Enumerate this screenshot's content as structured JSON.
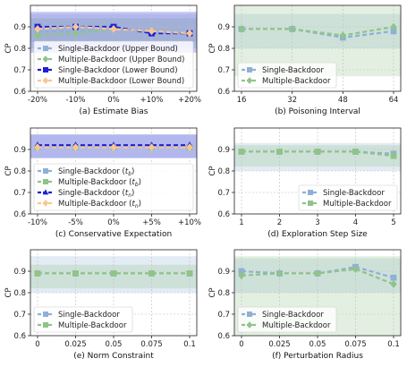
{
  "colors": {
    "single_blue": "#8fb0d6",
    "multiple_green": "#8fc489",
    "lower_blue": "#1f1fd6",
    "lower_orange": "#f6c793",
    "grid": "#bdbdbd"
  },
  "chart_data": [
    {
      "id": "a",
      "type": "line",
      "caption": "(a) Estimate Bias",
      "ylabel": "CP",
      "xlabel": "",
      "categories": [
        "-20%",
        "-10%",
        "0%",
        "+10%",
        "+20%"
      ],
      "ylim": [
        0.6,
        1.0
      ],
      "yticks": [
        "0.6",
        "0.7",
        "0.8",
        "0.9"
      ],
      "grid": true,
      "legend_position": "lower-left",
      "series": [
        {
          "name": "Single-Backdoor (Upper Bound)",
          "values": [
            0.88,
            0.88,
            0.9,
            0.87,
            0.87
          ],
          "color": "#8fb0d6",
          "marker": "square",
          "band": [
            0.8,
            0.96
          ]
        },
        {
          "name": "Multiple-Backdoor (Upper Bound)",
          "values": [
            0.86,
            0.87,
            0.89,
            0.88,
            0.87
          ],
          "color": "#8fc489",
          "marker": "diamond",
          "band": [
            0.83,
            0.94
          ]
        },
        {
          "name": "Single-Backdoor (Lower Bound)",
          "values": [
            0.9,
            0.9,
            0.9,
            0.87,
            0.87
          ],
          "color": "#1f1fd6",
          "marker": "square",
          "band": [
            0.78,
            0.97
          ]
        },
        {
          "name": "Multiple-Backdoor (Lower Bound)",
          "values": [
            0.89,
            0.9,
            0.89,
            0.88,
            0.87
          ],
          "color": "#f6c793",
          "marker": "diamond",
          "band": null
        }
      ]
    },
    {
      "id": "b",
      "type": "line",
      "caption": "(b) Poisoning Interval",
      "ylabel": "CP",
      "xlabel": "",
      "categories": [
        "16",
        "32",
        "48",
        "64"
      ],
      "ylim": [
        0.6,
        1.0
      ],
      "yticks": [
        "0.6",
        "0.7",
        "0.8",
        "0.9"
      ],
      "grid": true,
      "legend_position": "lower-left",
      "series": [
        {
          "name": "Single-Backdoor",
          "values": [
            0.89,
            0.89,
            0.85,
            0.88
          ],
          "color": "#8fb0d6",
          "marker": "square",
          "band": [
            0.8,
            0.96
          ]
        },
        {
          "name": "Multiple-Backdoor",
          "values": [
            0.89,
            0.89,
            0.86,
            0.9
          ],
          "color": "#8fc489",
          "marker": "diamond",
          "band": [
            0.67,
            1.0
          ]
        }
      ]
    },
    {
      "id": "c",
      "type": "line",
      "caption": "(c) Conservative Expectation",
      "ylabel": "CP",
      "xlabel": "",
      "categories": [
        "-10%",
        "-5%",
        "0%",
        "+5%",
        "+10%"
      ],
      "ylim": [
        0.6,
        1.0
      ],
      "yticks": [
        "0.6",
        "0.7",
        "0.8",
        "0.9"
      ],
      "grid": true,
      "legend_position": "lower-left",
      "series": [
        {
          "name": "Single-Backdoor (t_b)",
          "label_main": "Single-Backdoor (",
          "label_sub": "t",
          "label_subscript": "b",
          "values": [
            0.91,
            0.91,
            0.91,
            0.91,
            0.91
          ],
          "color": "#8fb0d6",
          "marker": "square",
          "band": [
            0.86,
            0.97
          ]
        },
        {
          "name": "Multiple-Backdoor (t_b)",
          "label_main": "Multiple-Backdoor (",
          "label_sub": "t",
          "label_subscript": "b",
          "values": [
            0.91,
            0.91,
            0.91,
            0.91,
            0.91
          ],
          "color": "#8fc489",
          "marker": "square",
          "band": null
        },
        {
          "name": "Single-Backdoor (t_n)",
          "label_main": "Single-Backdoor (",
          "label_sub": "t",
          "label_subscript": "n",
          "values": [
            0.92,
            0.92,
            0.92,
            0.92,
            0.92
          ],
          "color": "#1f1fd6",
          "marker": "triangle",
          "band": [
            0.86,
            0.97
          ]
        },
        {
          "name": "Multiple-Backdoor (t_n)",
          "label_main": "Multiple-Backdoor (",
          "label_sub": "t",
          "label_subscript": "n",
          "values": [
            0.91,
            0.91,
            0.91,
            0.91,
            0.91
          ],
          "color": "#f6c793",
          "marker": "diamond",
          "band": null
        }
      ]
    },
    {
      "id": "d",
      "type": "line",
      "caption": "(d) Exploration Step Size",
      "ylabel": "CP",
      "xlabel": "",
      "categories": [
        "1",
        "2",
        "3",
        "4",
        "5"
      ],
      "ylim": [
        0.6,
        1.0
      ],
      "yticks": [
        "0.6",
        "0.7",
        "0.8",
        "0.9"
      ],
      "grid": true,
      "legend_position": "lower-right",
      "series": [
        {
          "name": "Single-Backdoor",
          "values": [
            0.89,
            0.89,
            0.89,
            0.89,
            0.88
          ],
          "color": "#8fb0d6",
          "marker": "square",
          "band": [
            0.8,
            0.93
          ]
        },
        {
          "name": "Multiple-Backdoor",
          "values": [
            0.89,
            0.89,
            0.89,
            0.89,
            0.87
          ],
          "color": "#8fc489",
          "marker": "square",
          "band": [
            0.82,
            0.92
          ]
        }
      ]
    },
    {
      "id": "e",
      "type": "line",
      "caption": "(e) Norm Constraint",
      "ylabel": "CP",
      "xlabel": "",
      "categories": [
        "0",
        "0.025",
        "0.05",
        "0.075",
        "0.1"
      ],
      "ylim": [
        0.6,
        1.0
      ],
      "yticks": [
        "0.6",
        "0.7",
        "0.8",
        "0.9"
      ],
      "grid": true,
      "legend_position": "lower-left",
      "series": [
        {
          "name": "Single-Backdoor",
          "values": [
            0.89,
            0.89,
            0.89,
            0.89,
            0.89
          ],
          "color": "#8fb0d6",
          "marker": "square",
          "band": [
            0.8,
            0.97
          ]
        },
        {
          "name": "Multiple-Backdoor",
          "values": [
            0.89,
            0.89,
            0.89,
            0.89,
            0.89
          ],
          "color": "#8fc489",
          "marker": "square",
          "band": [
            0.82,
            0.93
          ]
        }
      ]
    },
    {
      "id": "f",
      "type": "line",
      "caption": "(f) Perturbation Radius",
      "ylabel": "CP",
      "xlabel": "",
      "categories": [
        "0",
        "0.025",
        "0.05",
        "0.075",
        "0.1"
      ],
      "ylim": [
        0.6,
        1.0
      ],
      "yticks": [
        "0.6",
        "0.7",
        "0.8",
        "0.9"
      ],
      "grid": true,
      "legend_position": "lower-left",
      "series": [
        {
          "name": "Single-Backdoor",
          "values": [
            0.9,
            0.89,
            0.89,
            0.92,
            0.87
          ],
          "color": "#8fb0d6",
          "marker": "square",
          "band": [
            0.8,
            0.96
          ]
        },
        {
          "name": "Multiple-Backdoor",
          "values": [
            0.88,
            0.89,
            0.89,
            0.91,
            0.84
          ],
          "color": "#8fc489",
          "marker": "diamond",
          "band": [
            0.6,
            0.97
          ]
        }
      ]
    }
  ]
}
